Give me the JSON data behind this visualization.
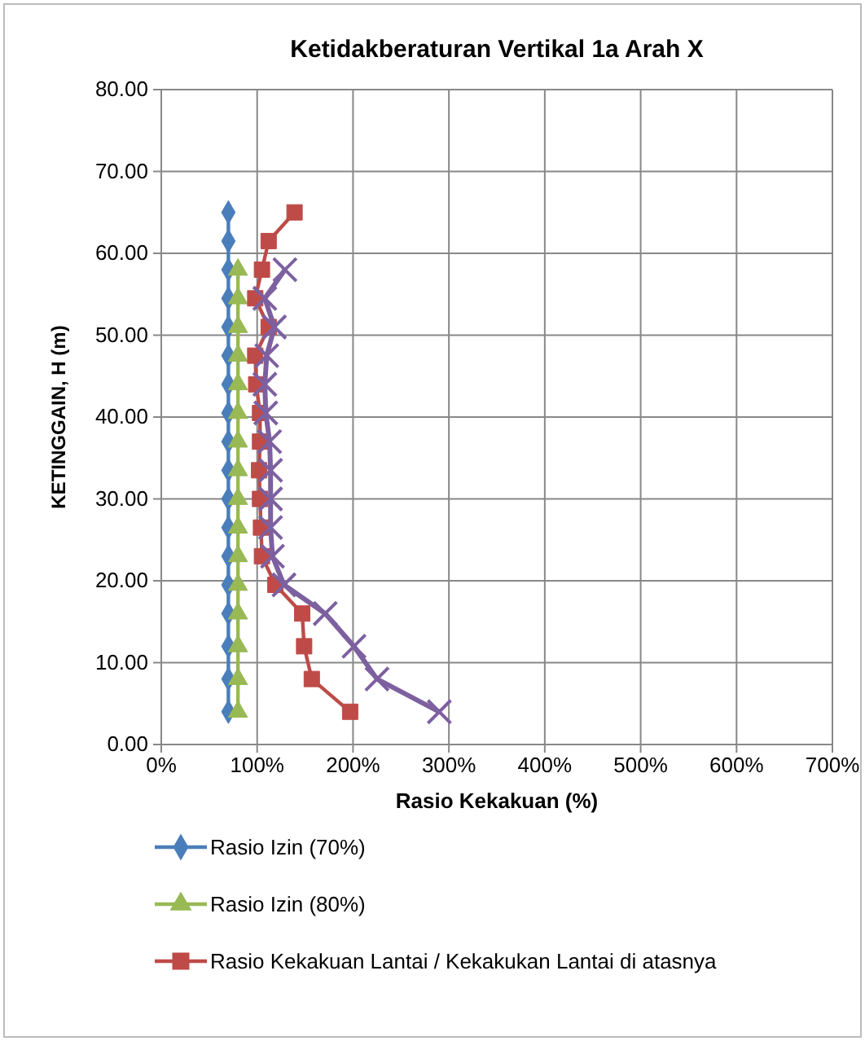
{
  "chart_data": {
    "type": "line",
    "title": "Ketidakberaturan Vertikal 1a Arah X",
    "xlabel": "Rasio Kekakuan (%)",
    "ylabel": "KETINGGAIN, H (m)",
    "xlim": [
      0,
      700
    ],
    "xticks": [
      {
        "value": 0,
        "label": "0%"
      },
      {
        "value": 100,
        "label": "100%"
      },
      {
        "value": 200,
        "label": "200%"
      },
      {
        "value": 300,
        "label": "300%"
      },
      {
        "value": 400,
        "label": "400%"
      },
      {
        "value": 500,
        "label": "500%"
      },
      {
        "value": 600,
        "label": "600%"
      },
      {
        "value": 700,
        "label": "700%"
      }
    ],
    "ylim": [
      0,
      80
    ],
    "yticks": [
      {
        "value": 0,
        "label": "0.00"
      },
      {
        "value": 10,
        "label": "10.00"
      },
      {
        "value": 20,
        "label": "20.00"
      },
      {
        "value": 30,
        "label": "30.00"
      },
      {
        "value": 40,
        "label": "40.00"
      },
      {
        "value": 50,
        "label": "50.00"
      },
      {
        "value": 60,
        "label": "60.00"
      },
      {
        "value": 70,
        "label": "70.00"
      },
      {
        "value": 80,
        "label": "80.00"
      }
    ],
    "grid": true,
    "legend": "bottom",
    "line_style": "solid",
    "series": [
      {
        "name": "Rasio Izin (70%)",
        "color": "#4a7ebb",
        "marker": "diamond",
        "x": [
          70,
          70,
          70,
          70,
          70,
          70,
          70,
          70,
          70,
          70,
          70,
          70,
          70,
          70,
          70,
          70,
          70,
          70
        ],
        "values": [
          4,
          8,
          12,
          16,
          19.5,
          23,
          26.5,
          30,
          33.5,
          37,
          40.5,
          44,
          47.5,
          51,
          54.5,
          58,
          61.5,
          65
        ]
      },
      {
        "name": "Rasio Izin (80%)",
        "color": "#98b954",
        "marker": "triangle",
        "x": [
          80,
          80,
          80,
          80,
          80,
          80,
          80,
          80,
          80,
          80,
          80,
          80,
          80,
          80,
          80,
          80
        ],
        "values": [
          4,
          8,
          12,
          16,
          19.5,
          23,
          26.5,
          30,
          33.5,
          37,
          40.5,
          44,
          47.5,
          51,
          54.5,
          58
        ]
      },
      {
        "name": "Rasio Kekakuan Lantai / Kekakukan Lantai di atasnya",
        "color": "#be4b48",
        "marker": "square",
        "x": [
          197,
          157,
          149,
          147,
          119,
          105,
          104,
          103,
          102,
          103,
          103,
          99,
          98,
          112,
          98,
          105,
          112,
          139
        ],
        "values": [
          4,
          8,
          12,
          16,
          19.5,
          23,
          26.5,
          30,
          33.5,
          37,
          40.5,
          44,
          47.5,
          51,
          54.5,
          58,
          61.5,
          65
        ]
      },
      {
        "color": "#7d60a0",
        "marker": "cross",
        "x": [
          290,
          225,
          201,
          171,
          128,
          116,
          114,
          114,
          114,
          113,
          109,
          108,
          110,
          118,
          108,
          129
        ],
        "values": [
          4,
          8,
          12,
          16,
          19.5,
          23,
          26.5,
          30,
          33.5,
          37,
          40.5,
          44,
          47.5,
          51,
          54.5,
          58
        ]
      }
    ]
  }
}
